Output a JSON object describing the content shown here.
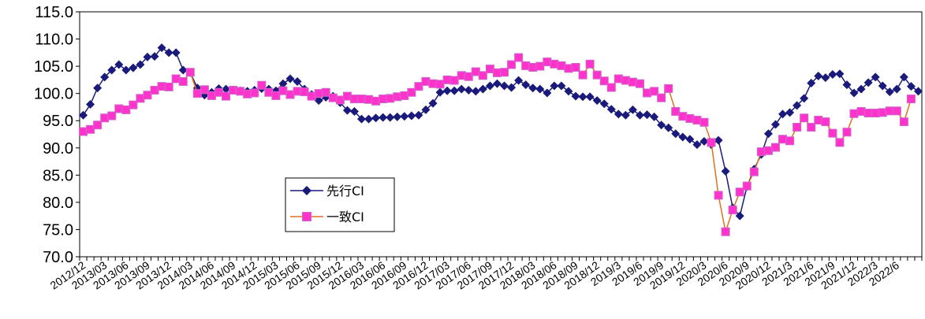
{
  "chart_data": {
    "type": "line",
    "xlabel": "",
    "ylabel": "",
    "ylim": [
      70,
      115
    ],
    "yticks": [
      "70.0",
      "75.0",
      "80.0",
      "85.0",
      "90.0",
      "95.0",
      "100.0",
      "105.0",
      "110.0",
      "115.0"
    ],
    "grid": false,
    "legend_position": "center-left",
    "x_tick_labels": [
      "2012/12",
      "2013/03",
      "2013/06",
      "2013/09",
      "2013/12",
      "2014/03",
      "2014/06",
      "2014/09",
      "2014/12",
      "2015/03",
      "2015/06",
      "2015/09",
      "2015/12",
      "2016/03",
      "2016/06",
      "2016/09",
      "2016/12",
      "2017/03",
      "2017/06",
      "2017/09",
      "2017/12",
      "2018/03",
      "2018/06",
      "2018/09",
      "2018/12",
      "2019/3",
      "2019/6",
      "2019/9",
      "2019/12",
      "2020/3",
      "2020/6",
      "2020/9",
      "2020/12",
      "2021/3",
      "2021/6",
      "2021/9",
      "2021/12",
      "2022/3",
      "2022/6"
    ],
    "series": [
      {
        "name": "先行CI",
        "color": "#1a1a7a",
        "marker": "diamond",
        "values": [
          96,
          98,
          101,
          103,
          104.3,
          105.3,
          104.3,
          104.7,
          105.3,
          106.7,
          106.8,
          108.4,
          107.5,
          107.5,
          104.3,
          103.8,
          101,
          99.7,
          100.2,
          100.9,
          100.8,
          100.6,
          100.5,
          100.4,
          100.6,
          100.9,
          100.8,
          100.5,
          101.8,
          102.7,
          102.2,
          100.8,
          99.8,
          98.7,
          99.3,
          99.5,
          98.3,
          96.9,
          96.7,
          95.3,
          95.3,
          95.5,
          95.6,
          95.6,
          95.7,
          95.8,
          95.9,
          96,
          97,
          98.2,
          100.2,
          100.5,
          100.5,
          100.8,
          100.6,
          100.4,
          100.8,
          101.4,
          101.8,
          101.4,
          101.1,
          102.4,
          101.6,
          101,
          100.8,
          100.1,
          101.4,
          101.4,
          100.4,
          99.5,
          99.4,
          99.4,
          98.7,
          98.1,
          97.1,
          96.2,
          96,
          97,
          96,
          96.1,
          95.7,
          94.2,
          93.7,
          92.6,
          92,
          91.6,
          90.6,
          91.2,
          90.6,
          91.4,
          85.7,
          79,
          77.5,
          82.9,
          86.1,
          88.8,
          92.6,
          94.3,
          96.2,
          96.5,
          97.8,
          99.1,
          101.9,
          103.2,
          102.9,
          103.5,
          103.6,
          101.6,
          100.1,
          100.8,
          102,
          103,
          101.4,
          100.3,
          100.8,
          103,
          101.3,
          100.4
        ]
      },
      {
        "name": "一致CI",
        "color": "#e07020",
        "markerColor": "#ff33cc",
        "marker": "square",
        "values": [
          93,
          93.4,
          94.2,
          95.5,
          95.9,
          97.2,
          97,
          97.9,
          99.1,
          99.7,
          100.6,
          101.3,
          101.2,
          102.7,
          102.2,
          103.9,
          100,
          100.7,
          99.6,
          100.2,
          99.5,
          100.6,
          100.4,
          99.9,
          100.1,
          101.5,
          100.2,
          99.6,
          100.5,
          99.8,
          100.4,
          100.3,
          99.5,
          100,
          100.2,
          99.2,
          98.8,
          99.5,
          99,
          99,
          98.9,
          98.6,
          99,
          99.1,
          99.4,
          99.6,
          100.2,
          101.3,
          102.2,
          101.8,
          101.7,
          102.5,
          102.4,
          103.3,
          103.1,
          104,
          103.3,
          104.5,
          103.8,
          103.9,
          105.3,
          106.6,
          105.1,
          104.8,
          105,
          105.8,
          105.4,
          105.1,
          104.6,
          104.8,
          103.4,
          105.4,
          103.4,
          102.3,
          101.1,
          102.7,
          102.4,
          102.1,
          101.8,
          100.1,
          100.4,
          99.2,
          100.9,
          96.7,
          95.8,
          95.4,
          95.1,
          94.7,
          91,
          81.3,
          74.6,
          78.6,
          81.9,
          83,
          85.6,
          89.3,
          89.5,
          90.1,
          91.6,
          91.3,
          93.8,
          95.5,
          93.8,
          95.1,
          94.8,
          92.7,
          91,
          92.9,
          96.3,
          96.7,
          96.4,
          96.4,
          96.5,
          96.8,
          96.8,
          94.8,
          99
        ]
      }
    ]
  }
}
